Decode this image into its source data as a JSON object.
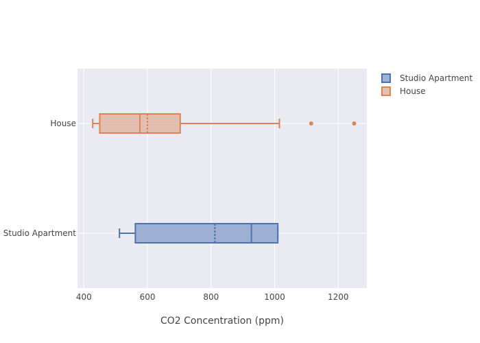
{
  "chart_data": {
    "type": "box",
    "orientation": "horizontal",
    "xlabel": "CO2 Concentration (ppm)",
    "xlim": [
      380,
      1290
    ],
    "xticks": [
      400,
      600,
      800,
      1000,
      1200
    ],
    "grid": true,
    "legend_position": "top-right",
    "categories": [
      "Studio Apartment",
      "House"
    ],
    "series": [
      {
        "name": "Studio Apartment",
        "color": "#4c72b0",
        "fill": "#8fa4cc",
        "min": 512,
        "q1": 562,
        "median": 927,
        "mean": 812,
        "q3": 1010,
        "max": 1010,
        "outliers": []
      },
      {
        "name": "House",
        "color": "#dd8452",
        "fill": "#e0b6a4",
        "min": 428,
        "q1": 450,
        "median": 576,
        "mean": 600,
        "q3": 703,
        "max": 1015,
        "outliers": [
          1115,
          1250
        ]
      }
    ]
  }
}
